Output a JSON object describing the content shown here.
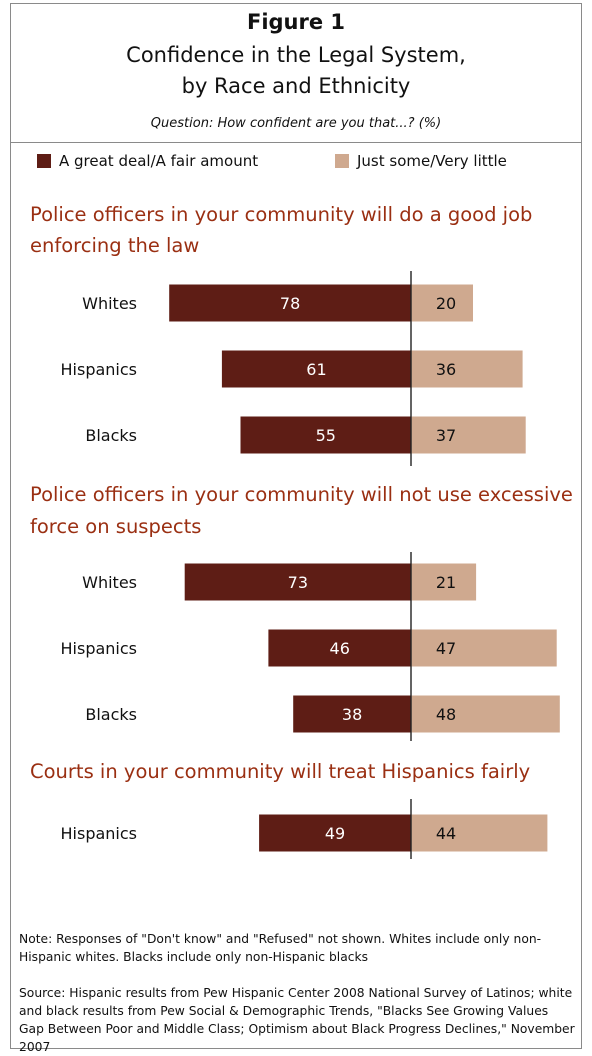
{
  "figure": {
    "title": "Figure 1",
    "subtitle_line1": "Confidence in the Legal System,",
    "subtitle_line2": "by Race and Ethnicity",
    "question": "Question: How confident are you that...? (%)"
  },
  "colors": {
    "positive": "#5e1d15",
    "negative": "#cfa98f",
    "section_title": "#9a2f12",
    "axis": "#222222"
  },
  "chart_data": {
    "type": "bar",
    "orientation": "horizontal-diverging",
    "legend": [
      {
        "name": "A great deal/A fair amount",
        "color": "#5e1d15"
      },
      {
        "name": "Just some/Very little",
        "color": "#cfa98f"
      }
    ],
    "legend_position": "top",
    "grid": false,
    "xlim": [
      -80,
      80
    ],
    "panels": [
      {
        "title": "Police officers in your community will do a good job enforcing the law",
        "categories": [
          "Whites",
          "Hispanics",
          "Blacks"
        ],
        "series": [
          {
            "name": "A great deal/A fair amount",
            "values": [
              78,
              61,
              55
            ]
          },
          {
            "name": "Just some/Very little",
            "values": [
              20,
              36,
              37
            ]
          }
        ]
      },
      {
        "title": "Police officers in your community will not use excessive force on suspects",
        "categories": [
          "Whites",
          "Hispanics",
          "Blacks"
        ],
        "series": [
          {
            "name": "A great deal/A fair amount",
            "values": [
              73,
              46,
              38
            ]
          },
          {
            "name": "Just some/Very little",
            "values": [
              21,
              47,
              48
            ]
          }
        ]
      },
      {
        "title": "Courts in your community will treat Hispanics fairly",
        "categories": [
          "Hispanics"
        ],
        "series": [
          {
            "name": "A great deal/A fair amount",
            "values": [
              49
            ]
          },
          {
            "name": "Just some/Very little",
            "values": [
              44
            ]
          }
        ]
      }
    ]
  },
  "footnotes": {
    "note": "Note: Responses of \"Don't know\" and \"Refused\" not shown. Whites include only non-Hispanic whites. Blacks include only non-Hispanic blacks",
    "source": "Source: Hispanic results from Pew Hispanic Center 2008 National Survey of Latinos; white and black results from Pew Social & Demographic Trends, \"Blacks See Growing Values Gap Between Poor and Middle Class; Optimism about Black Progress Declines,\" November 2007"
  }
}
